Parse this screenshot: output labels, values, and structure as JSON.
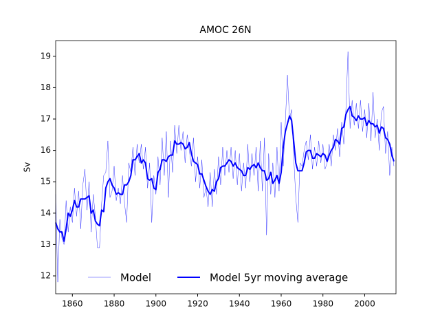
{
  "chart_data": {
    "type": "line",
    "title": "AMOC 26N",
    "ylabel": "Sv",
    "x": [
      1852,
      1853,
      1854,
      1855,
      1856,
      1857,
      1858,
      1859,
      1860,
      1861,
      1862,
      1863,
      1864,
      1865,
      1866,
      1867,
      1868,
      1869,
      1870,
      1871,
      1872,
      1873,
      1874,
      1875,
      1876,
      1877,
      1878,
      1879,
      1880,
      1881,
      1882,
      1883,
      1884,
      1885,
      1886,
      1887,
      1888,
      1889,
      1890,
      1891,
      1892,
      1893,
      1894,
      1895,
      1896,
      1897,
      1898,
      1899,
      1900,
      1901,
      1902,
      1903,
      1904,
      1905,
      1906,
      1907,
      1908,
      1909,
      1910,
      1911,
      1912,
      1913,
      1914,
      1915,
      1916,
      1917,
      1918,
      1919,
      1920,
      1921,
      1922,
      1923,
      1924,
      1925,
      1926,
      1927,
      1928,
      1929,
      1930,
      1931,
      1932,
      1933,
      1934,
      1935,
      1936,
      1937,
      1938,
      1939,
      1940,
      1941,
      1942,
      1943,
      1944,
      1945,
      1946,
      1947,
      1948,
      1949,
      1950,
      1951,
      1952,
      1953,
      1954,
      1955,
      1956,
      1957,
      1958,
      1959,
      1960,
      1961,
      1962,
      1963,
      1964,
      1965,
      1966,
      1967,
      1968,
      1969,
      1970,
      1971,
      1972,
      1973,
      1974,
      1975,
      1976,
      1977,
      1978,
      1979,
      1980,
      1981,
      1982,
      1983,
      1984,
      1985,
      1986,
      1987,
      1988,
      1989,
      1990,
      1991,
      1992,
      1993,
      1994,
      1995,
      1996,
      1997,
      1998,
      1999,
      2000,
      2001,
      2002,
      2003,
      2004,
      2005,
      2006,
      2007,
      2008,
      2009,
      2010,
      2011,
      2012,
      2013,
      2014
    ],
    "series": [
      {
        "name": "Model",
        "color": "#0000ff",
        "width": 0.4,
        "values": [
          14.6,
          11.8,
          13.8,
          13.2,
          13.0,
          14.4,
          13.4,
          14.2,
          13.7,
          14.8,
          13.9,
          14.7,
          13.5,
          14.9,
          15.4,
          14.1,
          15.0,
          13.4,
          14.6,
          13.9,
          12.9,
          12.9,
          14.3,
          15.2,
          15.3,
          16.3,
          14.5,
          14.7,
          15.5,
          14.4,
          14.8,
          14.3,
          15.2,
          14.3,
          13.7,
          15.6,
          15.3,
          16.1,
          15.2,
          16.2,
          15.6,
          16.2,
          15.4,
          16.1,
          14.8,
          15.6,
          13.7,
          15.2,
          14.6,
          15.8,
          14.9,
          16.4,
          15.2,
          16.6,
          14.5,
          16.3,
          15.3,
          16.8,
          15.9,
          16.8,
          16.0,
          16.6,
          15.6,
          16.5,
          16.0,
          15.5,
          16.4,
          15.0,
          15.8,
          14.8,
          15.7,
          14.5,
          14.8,
          14.2,
          15.3,
          14.2,
          15.4,
          14.6,
          15.8,
          14.9,
          16.1,
          15.2,
          16.0,
          15.3,
          16.1,
          15.1,
          16.0,
          14.9,
          15.9,
          14.7,
          15.6,
          14.8,
          16.2,
          15.0,
          15.9,
          15.2,
          16.1,
          14.7,
          16.3,
          14.7,
          16.4,
          13.3,
          15.9,
          14.6,
          15.6,
          14.5,
          16.1,
          14.7,
          16.9,
          15.5,
          16.9,
          18.4,
          17.0,
          17.3,
          15.8,
          14.5,
          13.7,
          15.6,
          15.5,
          16.0,
          16.3,
          15.7,
          16.5,
          15.4,
          16.1,
          15.5,
          16.3,
          15.6,
          16.2,
          15.4,
          15.6,
          16.2,
          15.5,
          16.5,
          16.0,
          16.7,
          15.8,
          16.9,
          16.2,
          17.3,
          19.15,
          16.7,
          17.6,
          16.8,
          17.5,
          16.7,
          17.6,
          16.6,
          17.3,
          16.4,
          17.5,
          16.3,
          17.85,
          16.4,
          17.0,
          16.0,
          17.2,
          17.4,
          15.9,
          16.6,
          15.2,
          16.1,
          15.5
        ]
      },
      {
        "name": "Model 5yr moving average",
        "color": "#0000ff",
        "width": 2,
        "values": [
          13.7,
          13.5,
          13.4,
          13.4,
          13.1,
          13.5,
          14.0,
          13.9,
          14.1,
          14.4,
          14.2,
          14.2,
          14.45,
          14.45,
          14.45,
          14.5,
          14.55,
          14.0,
          14.1,
          13.75,
          13.65,
          13.6,
          14.1,
          14.05,
          14.8,
          15.0,
          15.1,
          14.9,
          14.8,
          14.6,
          14.65,
          14.6,
          14.6,
          14.9,
          14.9,
          15.0,
          15.2,
          15.7,
          15.7,
          15.8,
          15.9,
          15.6,
          15.7,
          15.6,
          15.1,
          15.05,
          15.1,
          14.8,
          14.75,
          15.3,
          15.4,
          15.7,
          15.7,
          15.65,
          15.8,
          15.85,
          15.85,
          16.3,
          16.2,
          16.2,
          16.25,
          16.2,
          16.05,
          16.1,
          16.25,
          15.9,
          15.65,
          15.6,
          15.55,
          15.25,
          15.25,
          15.05,
          14.85,
          14.7,
          14.6,
          14.75,
          14.7,
          15.0,
          15.1,
          15.45,
          15.5,
          15.5,
          15.6,
          15.7,
          15.65,
          15.5,
          15.6,
          15.45,
          15.4,
          15.35,
          15.2,
          15.2,
          15.45,
          15.4,
          15.5,
          15.55,
          15.45,
          15.6,
          15.45,
          15.35,
          15.35,
          15.05,
          15.1,
          15.3,
          14.95,
          15.05,
          15.2,
          14.95,
          15.3,
          16.1,
          16.6,
          16.85,
          17.1,
          16.95,
          16.3,
          15.6,
          15.35,
          15.35,
          15.35,
          15.6,
          15.95,
          16.0,
          16.0,
          15.75,
          15.75,
          15.9,
          15.85,
          15.8,
          15.9,
          15.85,
          15.65,
          15.85,
          16.0,
          16.1,
          16.35,
          16.3,
          16.2,
          16.7,
          16.75,
          17.15,
          17.3,
          17.4,
          17.1,
          17.05,
          16.95,
          17.1,
          17.0,
          17.0,
          17.05,
          16.8,
          16.95,
          16.85,
          16.85,
          16.75,
          16.8,
          16.55,
          16.75,
          16.7,
          16.4,
          16.35,
          16.2,
          15.85,
          15.65
        ]
      }
    ],
    "xlim": [
      1852,
      2015
    ],
    "xticks": [
      1860,
      1880,
      1900,
      1920,
      1940,
      1960,
      1980,
      2000
    ],
    "ylim": [
      11.43,
      19.5
    ],
    "yticks": [
      12,
      13,
      14,
      15,
      16,
      17,
      18,
      19
    ],
    "legend": "lower center"
  }
}
